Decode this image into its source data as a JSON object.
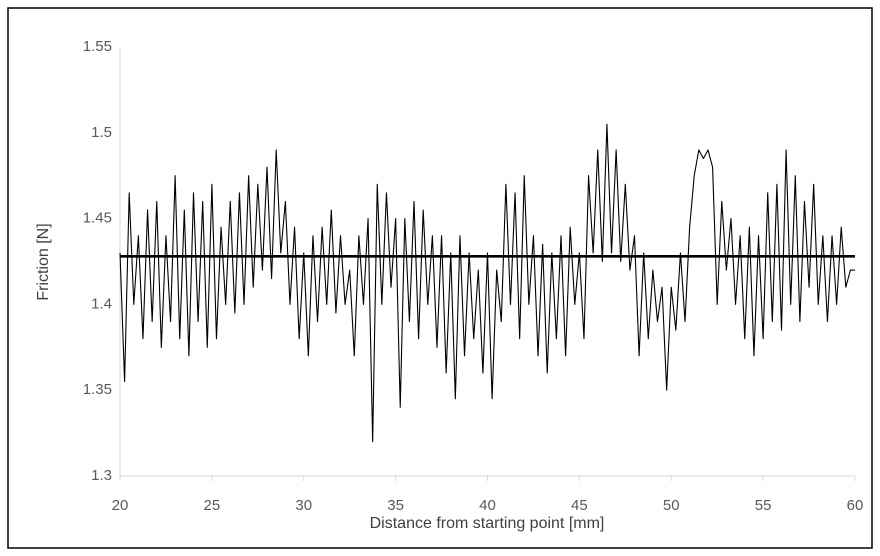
{
  "chart_data": {
    "type": "line",
    "xlabel": "Distance from starting point [mm]",
    "ylabel": "Friction [N]",
    "xlim": [
      20,
      60
    ],
    "xticks": [
      20,
      25,
      30,
      35,
      40,
      45,
      50,
      55,
      60
    ],
    "ylim": [
      1.3,
      1.55
    ],
    "yticks": [
      1.3,
      1.35,
      1.4,
      1.45,
      1.5,
      1.55
    ],
    "grid": false,
    "series": [
      {
        "color": "#000000",
        "x": [
          20,
          20.25,
          20.5,
          20.75,
          21,
          21.25,
          21.5,
          21.75,
          22,
          22.25,
          22.5,
          22.75,
          23,
          23.25,
          23.5,
          23.75,
          24,
          24.25,
          24.5,
          24.75,
          25,
          25.25,
          25.5,
          25.75,
          26,
          26.25,
          26.5,
          26.75,
          27,
          27.25,
          27.5,
          27.75,
          28,
          28.25,
          28.5,
          28.75,
          29,
          29.25,
          29.5,
          29.75,
          30,
          30.25,
          30.5,
          30.75,
          31,
          31.25,
          31.5,
          31.75,
          32,
          32.25,
          32.5,
          32.75,
          33,
          33.25,
          33.5,
          33.75,
          34,
          34.25,
          34.5,
          34.75,
          35,
          35.25,
          35.5,
          35.75,
          36,
          36.25,
          36.5,
          36.75,
          37,
          37.25,
          37.5,
          37.75,
          38,
          38.25,
          38.5,
          38.75,
          39,
          39.25,
          39.5,
          39.75,
          40,
          40.25,
          40.5,
          40.75,
          41,
          41.25,
          41.5,
          41.75,
          42,
          42.25,
          42.5,
          42.75,
          43,
          43.25,
          43.5,
          43.75,
          44,
          44.25,
          44.5,
          44.75,
          45,
          45.25,
          45.5,
          45.75,
          46,
          46.25,
          46.5,
          46.75,
          47,
          47.25,
          47.5,
          47.75,
          48,
          48.25,
          48.5,
          48.75,
          49,
          49.25,
          49.5,
          49.75,
          50,
          50.25,
          50.5,
          50.75,
          51,
          51.25,
          51.5,
          51.75,
          52,
          52.25,
          52.5,
          52.75,
          53,
          53.25,
          53.5,
          53.75,
          54,
          54.25,
          54.5,
          54.75,
          55,
          55.25,
          55.5,
          55.75,
          56,
          56.25,
          56.5,
          56.75,
          57,
          57.25,
          57.5,
          57.75,
          58,
          58.25,
          58.5,
          58.75,
          59,
          59.25,
          59.5,
          59.75,
          60
        ],
        "values": [
          1.43,
          1.355,
          1.465,
          1.4,
          1.44,
          1.38,
          1.455,
          1.39,
          1.46,
          1.375,
          1.44,
          1.39,
          1.475,
          1.38,
          1.455,
          1.37,
          1.465,
          1.39,
          1.46,
          1.375,
          1.47,
          1.38,
          1.445,
          1.4,
          1.46,
          1.395,
          1.465,
          1.4,
          1.475,
          1.41,
          1.47,
          1.42,
          1.48,
          1.415,
          1.49,
          1.43,
          1.46,
          1.4,
          1.445,
          1.38,
          1.43,
          1.37,
          1.44,
          1.39,
          1.445,
          1.4,
          1.455,
          1.395,
          1.44,
          1.4,
          1.42,
          1.37,
          1.44,
          1.4,
          1.45,
          1.32,
          1.47,
          1.4,
          1.465,
          1.41,
          1.45,
          1.34,
          1.45,
          1.39,
          1.46,
          1.38,
          1.455,
          1.4,
          1.44,
          1.375,
          1.44,
          1.36,
          1.43,
          1.345,
          1.44,
          1.37,
          1.43,
          1.38,
          1.42,
          1.36,
          1.43,
          1.345,
          1.42,
          1.39,
          1.47,
          1.4,
          1.465,
          1.38,
          1.475,
          1.4,
          1.44,
          1.37,
          1.435,
          1.36,
          1.43,
          1.38,
          1.44,
          1.37,
          1.445,
          1.4,
          1.43,
          1.38,
          1.475,
          1.43,
          1.49,
          1.425,
          1.505,
          1.43,
          1.49,
          1.425,
          1.47,
          1.42,
          1.44,
          1.37,
          1.43,
          1.38,
          1.42,
          1.39,
          1.41,
          1.35,
          1.41,
          1.385,
          1.43,
          1.39,
          1.445,
          1.475,
          1.49,
          1.485,
          1.49,
          1.48,
          1.4,
          1.46,
          1.42,
          1.45,
          1.4,
          1.44,
          1.38,
          1.445,
          1.37,
          1.44,
          1.38,
          1.465,
          1.39,
          1.47,
          1.385,
          1.49,
          1.4,
          1.475,
          1.39,
          1.46,
          1.41,
          1.47,
          1.4,
          1.44,
          1.39,
          1.44,
          1.4,
          1.445,
          1.41,
          1.42,
          1.42
        ]
      },
      {
        "color": "#000000",
        "x": [
          20,
          60
        ],
        "values": [
          1.428,
          1.428
        ]
      }
    ]
  }
}
